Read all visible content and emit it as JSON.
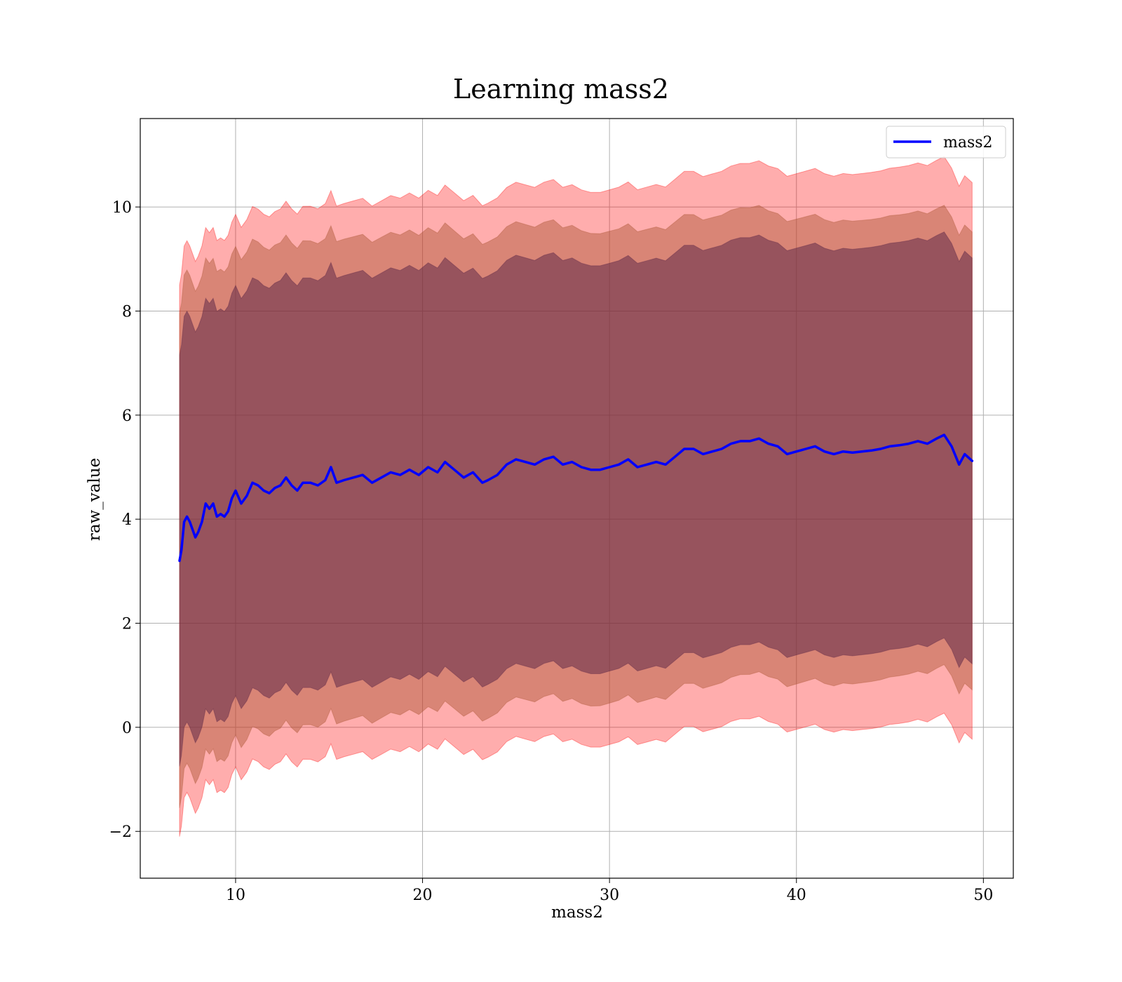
{
  "chart_data": {
    "type": "line",
    "title": "Learning mass2",
    "xlabel": "mass2",
    "ylabel": "raw_value",
    "xlim": [
      4.9,
      51.6
    ],
    "ylim": [
      -2.9,
      11.7
    ],
    "xticks": [
      10,
      20,
      30,
      40,
      50
    ],
    "yticks": [
      -2,
      0,
      2,
      4,
      6,
      8,
      10
    ],
    "grid": true,
    "legend_placement": "top-right",
    "colors": {
      "line": "#0000ff",
      "band_outer": "#ff0000",
      "band_middle": "#aa5533",
      "band_inner": "#552244",
      "grid": "#b0b0b0"
    },
    "series": [
      {
        "name": "mass2",
        "x": [
          7.0,
          7.1,
          7.25,
          7.4,
          7.55,
          7.7,
          7.85,
          8.0,
          8.2,
          8.4,
          8.6,
          8.8,
          9.0,
          9.2,
          9.4,
          9.6,
          9.8,
          10.0,
          10.3,
          10.6,
          10.9,
          11.2,
          11.5,
          11.8,
          12.1,
          12.4,
          12.7,
          13.0,
          13.3,
          13.6,
          14.0,
          14.4,
          14.8,
          15.1,
          15.4,
          15.8,
          16.3,
          16.8,
          17.3,
          17.8,
          18.3,
          18.8,
          19.3,
          19.8,
          20.3,
          20.8,
          21.2,
          21.7,
          22.2,
          22.7,
          23.2,
          23.5,
          24.0,
          24.5,
          25.0,
          25.5,
          26.0,
          26.5,
          27.0,
          27.5,
          28.0,
          28.5,
          29.0,
          29.5,
          30.0,
          30.5,
          31.0,
          31.5,
          32.0,
          32.5,
          33.0,
          33.5,
          34.0,
          34.5,
          35.0,
          35.5,
          36.0,
          36.5,
          37.0,
          37.5,
          38.0,
          38.5,
          39.0,
          39.5,
          40.0,
          40.5,
          41.0,
          41.5,
          42.0,
          42.5,
          43.0,
          43.5,
          44.0,
          44.5,
          45.0,
          45.5,
          46.0,
          46.5,
          47.0,
          47.5,
          47.9,
          48.3,
          48.7,
          49.0,
          49.4
        ],
        "values": [
          3.2,
          3.4,
          3.95,
          4.05,
          3.95,
          3.8,
          3.65,
          3.75,
          3.95,
          4.3,
          4.2,
          4.3,
          4.05,
          4.1,
          4.05,
          4.15,
          4.4,
          4.55,
          4.3,
          4.45,
          4.7,
          4.65,
          4.55,
          4.5,
          4.6,
          4.65,
          4.8,
          4.65,
          4.55,
          4.7,
          4.7,
          4.65,
          4.75,
          5.0,
          4.7,
          4.75,
          4.8,
          4.85,
          4.7,
          4.8,
          4.9,
          4.85,
          4.95,
          4.85,
          5.0,
          4.9,
          5.1,
          4.95,
          4.8,
          4.9,
          4.7,
          4.75,
          4.85,
          5.05,
          5.15,
          5.1,
          5.05,
          5.15,
          5.2,
          5.05,
          5.1,
          5.0,
          4.95,
          4.95,
          5.0,
          5.05,
          5.15,
          5.0,
          5.05,
          5.1,
          5.05,
          5.2,
          5.35,
          5.35,
          5.25,
          5.3,
          5.35,
          5.45,
          5.5,
          5.5,
          5.55,
          5.45,
          5.4,
          5.25,
          5.3,
          5.35,
          5.4,
          5.3,
          5.25,
          5.3,
          5.28,
          5.3,
          5.32,
          5.35,
          5.4,
          5.42,
          5.45,
          5.5,
          5.45,
          5.55,
          5.62,
          5.4,
          5.05,
          5.25,
          5.12
        ],
        "bands": [
          {
            "level": "outer",
            "half_width_start": 5.3,
            "half_width_end": 5.35
          },
          {
            "level": "middle",
            "half_width_start": 4.75,
            "half_width_end": 4.4
          },
          {
            "level": "inner",
            "half_width_start": 3.95,
            "half_width_end": 3.9
          }
        ]
      }
    ]
  }
}
